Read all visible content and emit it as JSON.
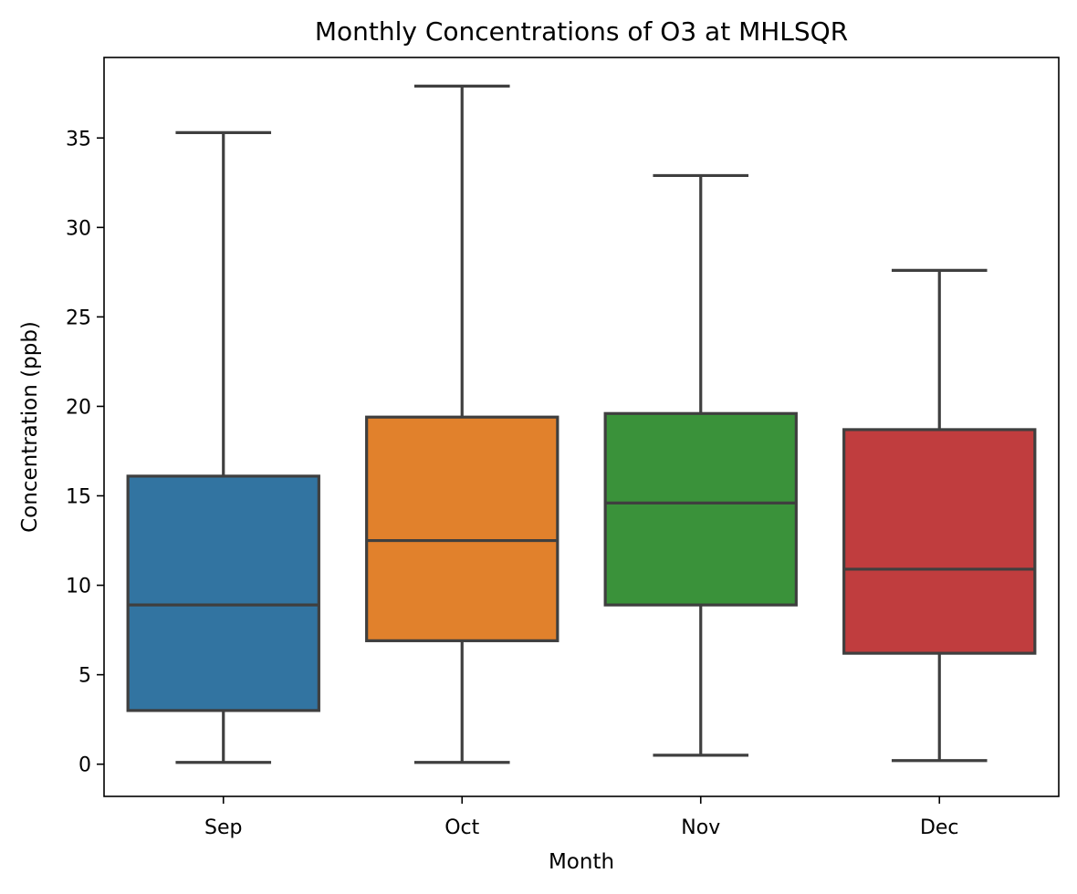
{
  "chart_data": {
    "type": "box",
    "title": "Monthly Concentrations of O3 at MHLSQR",
    "xlabel": "Month",
    "ylabel": "Concentration (ppb)",
    "ylim": [
      -1.8,
      39.5
    ],
    "yticks": [
      0,
      5,
      10,
      15,
      20,
      25,
      30,
      35
    ],
    "grid": false,
    "categories": [
      "Sep",
      "Oct",
      "Nov",
      "Dec"
    ],
    "colors": [
      "#3274a1",
      "#e1812c",
      "#3a923a",
      "#c03d3e"
    ],
    "edge_color": "#3f3f3f",
    "boxes": [
      {
        "category": "Sep",
        "whisker_low": 0.1,
        "q1": 3.0,
        "median": 8.9,
        "q3": 16.1,
        "whisker_high": 35.3
      },
      {
        "category": "Oct",
        "whisker_low": 0.1,
        "q1": 6.9,
        "median": 12.5,
        "q3": 19.4,
        "whisker_high": 37.9
      },
      {
        "category": "Nov",
        "whisker_low": 0.5,
        "q1": 8.9,
        "median": 14.6,
        "q3": 19.6,
        "whisker_high": 32.9
      },
      {
        "category": "Dec",
        "whisker_low": 0.2,
        "q1": 6.2,
        "median": 10.9,
        "q3": 18.7,
        "whisker_high": 27.6
      }
    ]
  }
}
